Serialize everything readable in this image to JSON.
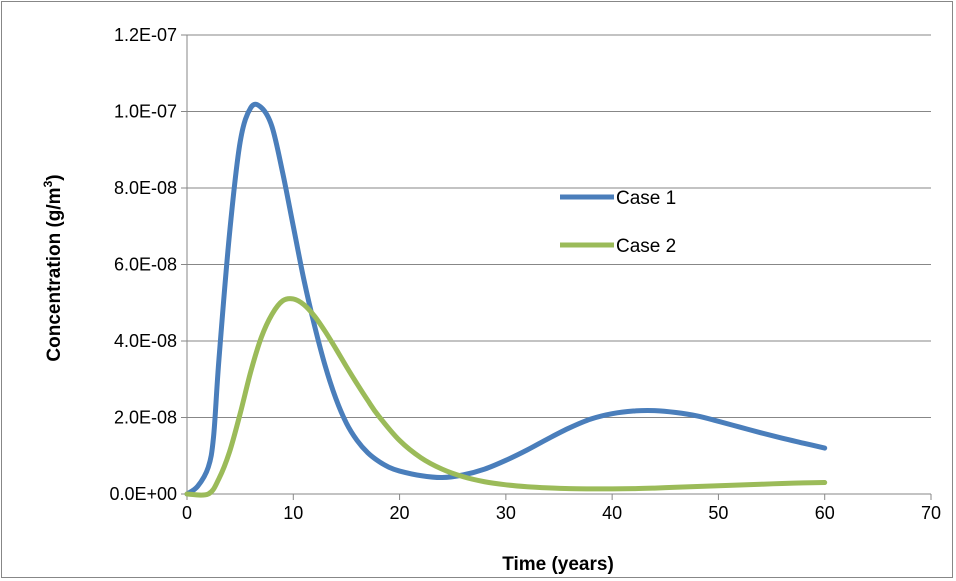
{
  "chart_data": {
    "type": "line",
    "title": "",
    "xlabel": "Time (years)",
    "ylabel_main": "Concentration (g/m",
    "ylabel_sup": "3",
    "ylabel_close": ")",
    "xlim": [
      0,
      70
    ],
    "ylim": [
      0,
      1.2e-07
    ],
    "x_ticks": [
      0,
      10,
      20,
      30,
      40,
      50,
      60,
      70
    ],
    "x_tick_labels": [
      "0",
      "10",
      "20",
      "30",
      "40",
      "50",
      "60",
      "70"
    ],
    "y_ticks": [
      0,
      2e-08,
      4e-08,
      6e-08,
      8e-08,
      1e-07,
      1.2e-07
    ],
    "y_tick_labels": [
      "0.0E+00",
      "2.0E-08",
      "4.0E-08",
      "6.0E-08",
      "8.0E-08",
      "1.0E-07",
      "1.2E-07"
    ],
    "grid": "horizontal",
    "legend_position": "center-right",
    "series": [
      {
        "name": "Case 1",
        "color": "#4a7ebb",
        "x": [
          0,
          1,
          2,
          2.5,
          3,
          4,
          5,
          6,
          7,
          8,
          9,
          10,
          11,
          12,
          13,
          14,
          15,
          16,
          17,
          18,
          19,
          20,
          22,
          24,
          26,
          28,
          30,
          32,
          34,
          36,
          38,
          40,
          42,
          44,
          46,
          48,
          50,
          52,
          54,
          56,
          58,
          60
        ],
        "y": [
          0,
          2e-09,
          7e-09,
          1.5e-08,
          3.5e-08,
          6.8e-08,
          9.2e-08,
          1.01e-07,
          1.01e-07,
          9.6e-08,
          8.4e-08,
          7e-08,
          5.6e-08,
          4.4e-08,
          3.35e-08,
          2.5e-08,
          1.85e-08,
          1.4e-08,
          1.08e-08,
          8.6e-09,
          7e-09,
          6e-09,
          4.8e-09,
          4.3e-09,
          5e-09,
          6.5e-09,
          8.8e-09,
          1.15e-08,
          1.45e-08,
          1.73e-08,
          1.96e-08,
          2.1e-08,
          2.17e-08,
          2.18e-08,
          2.13e-08,
          2.04e-08,
          1.9e-08,
          1.75e-08,
          1.6e-08,
          1.46e-08,
          1.33e-08,
          1.2e-08
        ]
      },
      {
        "name": "Case 2",
        "color": "#9bbb59",
        "x": [
          0,
          2,
          3,
          4,
          5,
          6,
          7,
          8,
          9,
          10,
          11,
          12,
          13,
          14,
          15,
          16,
          17,
          18,
          20,
          22,
          24,
          26,
          28,
          30,
          32,
          34,
          36,
          38,
          40,
          42,
          44,
          46,
          48,
          50,
          52,
          54,
          56,
          58,
          60
        ],
        "y": [
          0,
          0,
          4e-09,
          1.1e-08,
          2.1e-08,
          3.2e-08,
          4.1e-08,
          4.7e-08,
          5.05e-08,
          5.1e-08,
          4.95e-08,
          4.65e-08,
          4.25e-08,
          3.8e-08,
          3.33e-08,
          2.88e-08,
          2.45e-08,
          2.05e-08,
          1.4e-08,
          9.5e-09,
          6.5e-09,
          4.5e-09,
          3.2e-09,
          2.4e-09,
          1.9e-09,
          1.6e-09,
          1.4e-09,
          1.35e-09,
          1.35e-09,
          1.4e-09,
          1.55e-09,
          1.75e-09,
          1.95e-09,
          2.15e-09,
          2.35e-09,
          2.55e-09,
          2.75e-09,
          2.9e-09,
          3e-09
        ]
      }
    ]
  }
}
